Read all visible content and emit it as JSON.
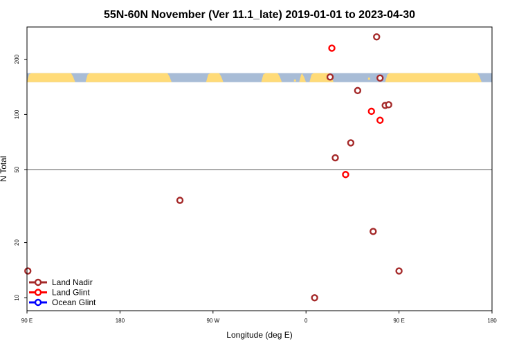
{
  "chart_data": {
    "type": "scatter",
    "title": "55N-60N November (Ver 11.1_late)   2019-01-01 to 2023-04-30",
    "xlabel": "Longitude (deg E)",
    "ylabel": "N Total",
    "x_scale": "linear",
    "y_scale": "log",
    "xlim": [
      90,
      360
    ],
    "ylim": [
      8.5,
      300
    ],
    "x_ticks": [
      {
        "value": 90,
        "label": "90 E"
      },
      {
        "value": 144,
        "label": "180"
      },
      {
        "value": 198,
        "label": "90 W"
      },
      {
        "value": 252,
        "label": "0"
      },
      {
        "value": 306,
        "label": "90 E"
      },
      {
        "value": 360,
        "label": "180"
      }
    ],
    "y_ticks": [
      {
        "value": 10,
        "label": "10"
      },
      {
        "value": 20,
        "label": "20"
      },
      {
        "value": 50,
        "label": "50"
      },
      {
        "value": 100,
        "label": "100"
      },
      {
        "value": 200,
        "label": "200"
      }
    ],
    "reference_line_y": 50,
    "map_strip": {
      "latitude_band": "55N-60N",
      "y_range": [
        150,
        168
      ],
      "land_color": "#FFDB78",
      "ocean_color": "#A8BCD6"
    },
    "legend_position": "bottom-left",
    "series": [
      {
        "name": "Land Nadir",
        "color": "#A52A2A",
        "points": [
          {
            "x": 90.5,
            "y": 14.0
          },
          {
            "x": 178.8,
            "y": 34.0
          },
          {
            "x": 257.0,
            "y": 10.0
          },
          {
            "x": 266.0,
            "y": 160.0
          },
          {
            "x": 269.0,
            "y": 58.0
          },
          {
            "x": 278.0,
            "y": 70.0
          },
          {
            "x": 282.0,
            "y": 135.0
          },
          {
            "x": 291.0,
            "y": 23.0
          },
          {
            "x": 293.0,
            "y": 265.0
          },
          {
            "x": 295.0,
            "y": 158.0
          },
          {
            "x": 298.0,
            "y": 112.0
          },
          {
            "x": 300.0,
            "y": 113.0
          },
          {
            "x": 306.0,
            "y": 14.0
          }
        ]
      },
      {
        "name": "Land Glint",
        "color": "#FF0000",
        "points": [
          {
            "x": 267.0,
            "y": 230.0
          },
          {
            "x": 275.0,
            "y": 47.0
          },
          {
            "x": 290.0,
            "y": 104.0
          },
          {
            "x": 295.0,
            "y": 93.0
          }
        ]
      },
      {
        "name": "Ocean Glint",
        "color": "#0000FF",
        "points": []
      }
    ]
  }
}
